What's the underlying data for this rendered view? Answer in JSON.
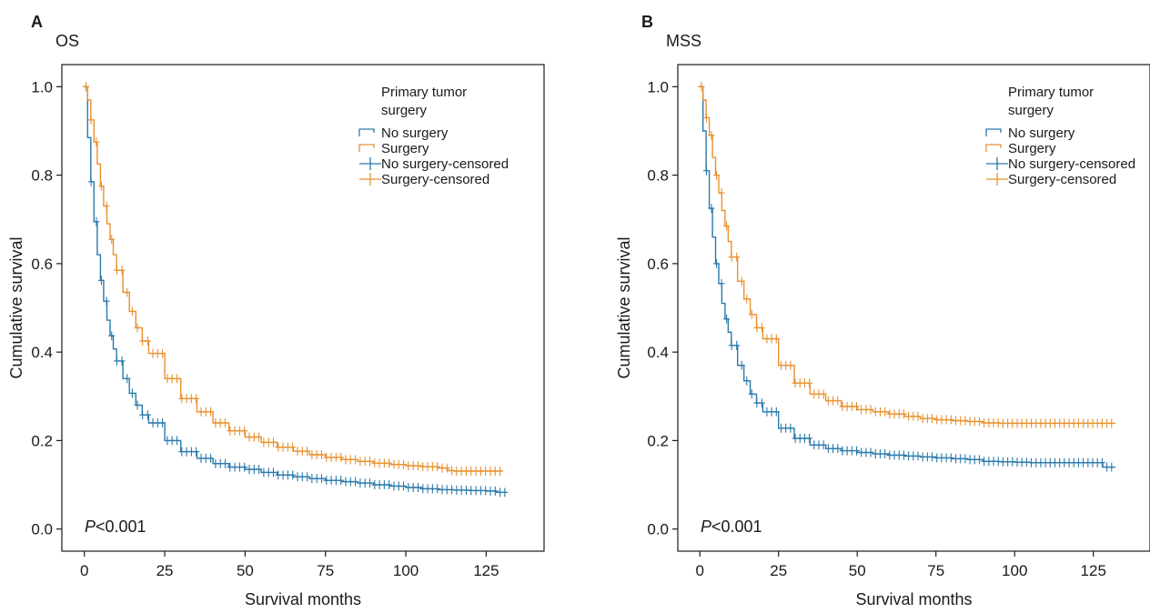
{
  "colors": {
    "no_surgery": "#2a7aaa",
    "surgery": "#e8912f",
    "axis": "#1a1a1a"
  },
  "chart_data": [
    {
      "panel_letter": "A",
      "title": "OS",
      "type": "line",
      "xlabel": "Survival months",
      "ylabel": "Cumulative survival",
      "xlim": [
        -7,
        143
      ],
      "ylim": [
        -0.05,
        1.05
      ],
      "xticks": [
        "0",
        "25",
        "50",
        "75",
        "100",
        "125"
      ],
      "yticks": [
        "0.0",
        "0.2",
        "0.4",
        "0.6",
        "0.8",
        "1.0"
      ],
      "legend_title": "Primary tumor surgery",
      "legend_position": "top-right",
      "legend_entries": [
        "No surgery",
        "Surgery",
        "No surgery-censored",
        "Surgery-censored"
      ],
      "annotation_italic": "P",
      "annotation_rest": "<0.001",
      "grid": false,
      "series": [
        {
          "name": "No surgery",
          "censored_after": 0,
          "x": [
            0,
            1,
            2,
            3,
            4,
            5,
            6,
            7,
            8,
            9,
            10,
            12,
            14,
            16,
            18,
            20,
            25,
            30,
            35,
            40,
            45,
            50,
            55,
            60,
            65,
            70,
            75,
            80,
            85,
            90,
            95,
            100,
            105,
            110,
            115,
            120,
            125,
            128,
            131
          ],
          "y": [
            1.0,
            0.885,
            0.785,
            0.695,
            0.62,
            0.562,
            0.515,
            0.472,
            0.437,
            0.407,
            0.38,
            0.34,
            0.307,
            0.28,
            0.258,
            0.24,
            0.2,
            0.175,
            0.16,
            0.148,
            0.14,
            0.135,
            0.128,
            0.122,
            0.118,
            0.114,
            0.11,
            0.107,
            0.104,
            0.1,
            0.097,
            0.094,
            0.091,
            0.089,
            0.088,
            0.087,
            0.086,
            0.083,
            0.082
          ]
        },
        {
          "name": "Surgery",
          "censored_after": 0,
          "x": [
            0,
            1,
            2,
            3,
            4,
            5,
            6,
            7,
            8,
            9,
            10,
            12,
            14,
            16,
            18,
            20,
            25,
            30,
            35,
            40,
            45,
            50,
            55,
            60,
            65,
            70,
            75,
            80,
            85,
            90,
            95,
            100,
            105,
            110,
            113,
            115,
            120,
            125,
            130
          ],
          "y": [
            1.0,
            0.97,
            0.925,
            0.875,
            0.825,
            0.775,
            0.73,
            0.69,
            0.655,
            0.62,
            0.585,
            0.535,
            0.492,
            0.455,
            0.425,
            0.397,
            0.34,
            0.295,
            0.265,
            0.24,
            0.222,
            0.208,
            0.196,
            0.185,
            0.176,
            0.168,
            0.162,
            0.157,
            0.153,
            0.149,
            0.146,
            0.143,
            0.141,
            0.138,
            0.132,
            0.131,
            0.131,
            0.131,
            0.131
          ]
        }
      ]
    },
    {
      "panel_letter": "B",
      "title": "MSS",
      "type": "line",
      "xlabel": "Survival months",
      "ylabel": "Cumulative survival",
      "xlim": [
        -7,
        143
      ],
      "ylim": [
        -0.05,
        1.05
      ],
      "xticks": [
        "0",
        "25",
        "50",
        "75",
        "100",
        "125"
      ],
      "yticks": [
        "0.0",
        "0.2",
        "0.4",
        "0.6",
        "0.8",
        "1.0"
      ],
      "legend_title": "Primary tumor surgery",
      "legend_position": "top-right",
      "legend_entries": [
        "No surgery",
        "Surgery",
        "No surgery-censored",
        "Surgery-censored"
      ],
      "annotation_italic": "P",
      "annotation_rest": "<0.001",
      "grid": false,
      "series": [
        {
          "name": "No surgery",
          "censored_after": 0,
          "x": [
            0,
            1,
            2,
            3,
            4,
            5,
            6,
            7,
            8,
            9,
            10,
            12,
            14,
            16,
            18,
            20,
            25,
            30,
            35,
            40,
            45,
            50,
            55,
            60,
            65,
            70,
            75,
            80,
            85,
            90,
            95,
            100,
            105,
            110,
            115,
            120,
            125,
            128,
            132
          ],
          "y": [
            1.0,
            0.9,
            0.81,
            0.725,
            0.66,
            0.6,
            0.555,
            0.51,
            0.475,
            0.445,
            0.415,
            0.37,
            0.335,
            0.305,
            0.285,
            0.265,
            0.228,
            0.205,
            0.19,
            0.182,
            0.177,
            0.173,
            0.17,
            0.167,
            0.165,
            0.163,
            0.161,
            0.159,
            0.157,
            0.153,
            0.152,
            0.151,
            0.15,
            0.15,
            0.15,
            0.15,
            0.15,
            0.14,
            0.14
          ]
        },
        {
          "name": "Surgery",
          "censored_after": 0,
          "x": [
            0,
            1,
            2,
            3,
            4,
            5,
            6,
            7,
            8,
            9,
            10,
            12,
            14,
            16,
            18,
            20,
            25,
            30,
            35,
            40,
            45,
            50,
            55,
            60,
            65,
            70,
            75,
            80,
            85,
            90,
            95,
            100,
            105,
            110,
            115,
            120,
            125,
            130,
            132
          ],
          "y": [
            1.0,
            0.97,
            0.93,
            0.89,
            0.84,
            0.8,
            0.76,
            0.72,
            0.685,
            0.65,
            0.615,
            0.56,
            0.52,
            0.485,
            0.455,
            0.43,
            0.37,
            0.33,
            0.305,
            0.29,
            0.277,
            0.27,
            0.265,
            0.26,
            0.255,
            0.25,
            0.247,
            0.245,
            0.243,
            0.24,
            0.239,
            0.239,
            0.239,
            0.239,
            0.239,
            0.239,
            0.239,
            0.239,
            0.239
          ]
        }
      ]
    }
  ]
}
